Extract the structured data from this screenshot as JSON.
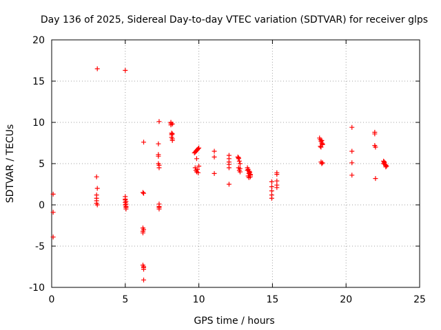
{
  "chart_data": {
    "type": "scatter",
    "title": "Day 136 of 2025, Sidereal Day-to-day VTEC variation (SDTVAR) for receiver glps",
    "xlabel": "GPS time / hours",
    "ylabel": "SDTVAR / TECUs",
    "xlim": [
      0,
      25
    ],
    "ylim": [
      -10,
      20
    ],
    "xticks": [
      "0",
      "5",
      "10",
      "15",
      "20",
      "25"
    ],
    "yticks": [
      "-10",
      "-5",
      "0",
      "5",
      "10",
      "15",
      "20"
    ],
    "grid": true,
    "marker": "+",
    "marker_color": "#ff0000",
    "series": [
      {
        "name": "SDTVAR",
        "x": [
          0.1,
          0.1,
          0.1,
          3.05,
          3.05,
          3.05,
          3.05,
          3.05,
          3.1,
          3.1,
          3.1,
          5.0,
          5.0,
          5.0,
          5.0,
          5.0,
          5.05,
          5.05,
          5.05,
          5.05,
          5.05,
          5.0,
          6.2,
          6.2,
          6.2,
          6.2,
          6.2,
          6.25,
          6.25,
          6.25,
          6.25,
          6.25,
          6.25,
          6.25,
          7.25,
          7.25,
          7.25,
          7.25,
          7.3,
          7.3,
          7.3,
          7.3,
          7.3,
          7.3,
          7.3,
          8.1,
          8.1,
          8.1,
          8.15,
          8.15,
          8.15,
          8.2,
          8.2,
          8.2,
          8.2,
          9.7,
          9.75,
          9.8,
          9.85,
          9.9,
          9.95,
          10.0,
          9.75,
          9.8,
          9.85,
          9.9,
          9.95,
          10.0,
          9.85,
          11.05,
          11.05,
          11.05,
          12.05,
          12.05,
          12.05,
          12.05,
          12.05,
          12.05,
          12.65,
          12.7,
          12.75,
          12.8,
          12.7,
          12.75,
          12.8,
          12.7,
          12.8,
          13.3,
          13.35,
          13.4,
          13.45,
          13.5,
          13.35,
          13.4,
          13.45,
          13.5,
          13.3,
          13.4,
          13.5,
          14.95,
          14.95,
          14.95,
          14.95,
          14.95,
          15.3,
          15.3,
          15.3,
          15.3,
          15.3,
          18.2,
          18.25,
          18.3,
          18.35,
          18.4,
          18.25,
          18.3,
          18.35,
          18.4,
          18.3,
          18.35,
          18.4,
          20.4,
          20.4,
          20.4,
          20.4,
          21.95,
          21.95,
          21.95,
          22.0,
          22.0,
          22.55,
          22.6,
          22.65,
          22.7,
          22.75,
          22.6,
          22.7,
          22.55
        ],
        "y": [
          1.3,
          -0.9,
          -3.9,
          0.8,
          0.5,
          0.2,
          1.2,
          3.4,
          0.0,
          2.0,
          16.5,
          16.3,
          1.0,
          0.7,
          0.3,
          0.0,
          -0.2,
          -0.5,
          0.4,
          0.1,
          -0.3,
          0.6,
          1.5,
          -2.8,
          -3.2,
          -3.4,
          -7.3,
          -7.6,
          -7.8,
          -9.1,
          1.4,
          -3.0,
          -7.5,
          7.6,
          7.4,
          6.1,
          5.9,
          5.0,
          4.8,
          4.5,
          -0.3,
          -0.5,
          -0.2,
          0.1,
          10.1,
          9.9,
          9.7,
          10.0,
          8.7,
          8.5,
          8.2,
          8.0,
          7.8,
          8.6,
          9.8,
          6.3,
          6.4,
          6.5,
          6.6,
          6.7,
          6.8,
          6.9,
          4.5,
          4.2,
          4.0,
          4.3,
          3.9,
          4.7,
          5.6,
          6.5,
          5.8,
          3.8,
          6.0,
          5.6,
          5.2,
          4.9,
          4.5,
          2.5,
          5.8,
          5.6,
          5.3,
          5.0,
          4.5,
          4.2,
          4.0,
          5.7,
          4.4,
          4.5,
          4.3,
          4.1,
          3.9,
          3.7,
          3.5,
          3.3,
          4.0,
          3.6,
          4.2,
          3.8,
          3.4,
          2.8,
          2.2,
          1.7,
          1.2,
          0.8,
          3.9,
          3.7,
          2.9,
          2.4,
          2.1,
          8.1,
          7.9,
          7.7,
          7.5,
          7.3,
          7.1,
          7.0,
          7.8,
          7.4,
          5.2,
          5.0,
          5.1,
          9.4,
          6.5,
          5.1,
          3.6,
          8.8,
          8.6,
          7.2,
          7.0,
          3.2,
          5.3,
          5.1,
          4.9,
          4.8,
          4.7,
          5.2,
          4.6,
          5.0
        ]
      }
    ]
  }
}
